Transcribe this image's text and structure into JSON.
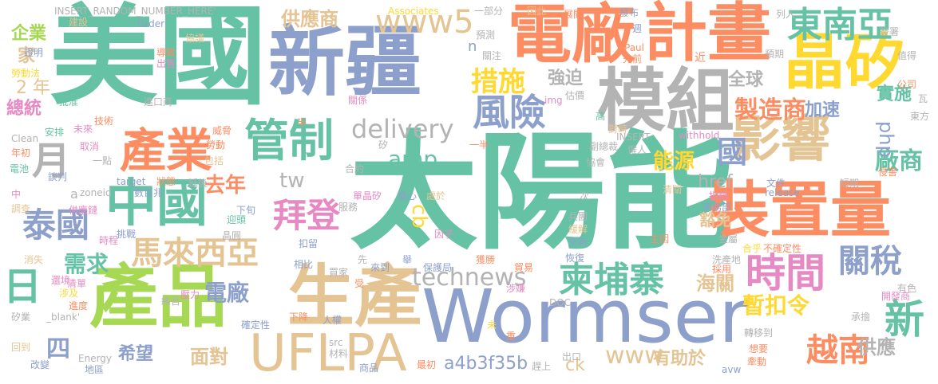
{
  "palette": {
    "teal": "#66c2a5",
    "orange": "#fc8d62",
    "blue": "#8da0cb",
    "pink": "#e78ac3",
    "green": "#a6d854",
    "yellow": "#ffd92f",
    "tan": "#e5c494",
    "gray": "#b3b3b3"
  },
  "words": {
    "taiyangneng": "太陽能",
    "meiguo": "美國",
    "xinjiang": "新疆",
    "wormser": "Wormser",
    "dianchang": "電廠",
    "jihua": "計畫",
    "mozu": "模組",
    "jingui": "晶矽",
    "zhuangzhiliang": "裝置量",
    "chanpin": "產品",
    "shengchan": "生產",
    "uflpa": "UFLPA",
    "zhongguo": "中國",
    "chanye": "產業",
    "guanzhi": "管制",
    "yingxiang": "影響",
    "dongnanya": "東南亞",
    "www5": "www5",
    "shijian": "時間",
    "jianpuzhai": "柬埔寨",
    "malaixiya": "馬來西亞",
    "baideng": "拜登",
    "fengxian": "風險",
    "cuoshi": "措施",
    "delivery": "delivery",
    "technews": "technews",
    "taiguo": "泰國",
    "yue": "月",
    "ri": "日",
    "guanshui": "關稅",
    "xin": "新",
    "yuenan": "越南",
    "amp": "amp",
    "xuqiu": "需求",
    "gongyingshang": "供應商",
    "zhizaoshang": "製造商",
    "guo": "國",
    "changshang": "廠商",
    "haiguan": "海關",
    "zankouling": "暫扣令",
    "cb": "cb",
    "www": "www",
    "php": "php",
    "qiangpo": "強迫",
    "quanqiu": "全球",
    "nengyuan": "能源",
    "jiasu": "加速",
    "shishi": "實施",
    "qunian": "去年",
    "tw": "tw",
    "qiye": "企業",
    "jia": "家",
    "ernian": "2 年",
    "zongtong": "總統",
    "xiwang": "希望",
    "miandui": "面對",
    "dianchang2": "電廠",
    "a4b3f35b": "a4b3f35b",
    "ck": "ck",
    "youzhuyu": "有助於",
    "gongying": "供應",
    "si": "四",
    "href": "href",
    "huomian": "豁免",
    "insert_random": "INSERT_RANDOM_NUMBER_HERE'",
    "associates": "Associates",
    "yibufen": "一部分",
    "yinci": "因此",
    "zhankai": "展開",
    "fabu": "發布",
    "jianshe": "建設",
    "order": "Order",
    "xieyi": "協議",
    "yuce": "預測",
    "zhou": "週",
    "zhengming": "證明",
    "daozhi": "導致",
    "chushou": "出售",
    "guanzhu": "關注",
    "paul": "Paul",
    "xianqian": "先前",
    "jin": "近",
    "yuqi": "預期",
    "zhide": "值得",
    "qianshu": "簽署",
    "lieru": "列入",
    "laodongfa": "勞動法",
    "guanxi": "關係",
    "gongsi": "公司",
    "wa": "瓦",
    "pizhun": "批准",
    "jinkoushang": "進口商",
    "img": "img",
    "gujia": "估價",
    "dongfang": "東方",
    "jishu": "技術",
    "clean": "Clean",
    "anpai": "安排",
    "weilai": "未來",
    "weixie": "威脅",
    "gao": "高",
    "duizhi": "對峙",
    "fuzongcai": "副總裁",
    "insert": "INSERT",
    "withhold": "withhold",
    "niandan": "年初",
    "quxiao": "取消",
    "laodong": "勞動",
    "xi": "矽",
    "yiban": "一半",
    "guren": "僱人",
    "qinhai": "侵害",
    "dianchi": "電池",
    "yidian": "一點",
    "baokuo": "包括",
    "zhuangkuang": "狀態",
    "heyue": "合約",
    "xiehui": "協會",
    "tanpan": "談判",
    "zhong": "中",
    "target": "target",
    "shuboli": "數百兆",
    "yanchang": "延後",
    "zoneid": "zoneid",
    "wenjian": "文件",
    "release": "release",
    "duanqi": "短期",
    "cheng": "次",
    "qingguan": "清關",
    "zhiye": "指稱",
    "diaocha": "調查",
    "gongyinglian": "供應鏈",
    "xiaxun": "下旬",
    "yingyuan": "迎頭",
    "fuwu": "服務",
    "chongxin": "重心",
    "chuyu": "處於",
    "shangwubu": "商務部",
    "jinghe": "晶圓",
    "danjinggui": "單晶矽",
    "bingtuan": "兵團",
    "huanjie": "緩解",
    "shicheng": "時程",
    "tiaozhan": "挑戰",
    "koulu": "扣留",
    "yinzi": "因子",
    "shijie": "世界",
    "quanxin": "全新",
    "zhuyin": "主因",
    "jinshu": "金屬",
    "xiaoshi": "消失",
    "xiangbi": "相比",
    "xian": "先",
    "lai": "來到",
    "ju": "舉",
    "baohuju": "保護局",
    "huode": "獲勝",
    "maoyi": "貿易",
    "huifu": "恢復",
    "heping": "合乎",
    "bquedingxing": "不確定性",
    "xichandi": "洗產地",
    "caiyong": "採用",
    "huanjing": "還境",
    "qingdan": "清單",
    "maijia": "買家",
    "shou": "受",
    "shejian": "涉嫌",
    "kaifashang": "開發商",
    "youse": "有色",
    "jiaodai": "繳代",
    "yali": "壓力",
    "sheji": "涉及",
    "jindu": "進度",
    "weiyu": "維吾",
    "doc": "DOC",
    "xiajiang": "下降",
    "renquan": "人權",
    "shiye": "矽業",
    "blank": "_blank'",
    "queding": "確定性",
    "wei": "未",
    "zhong2": "重",
    "zhuanyi": "轉移到",
    "chengdan": "承擔",
    "xiangyao": "想要",
    "huidao": "回到",
    "energy": "Energy",
    "src": "src",
    "cailiao": "材料",
    "zuichu": "最初",
    "chukou": "出口",
    "qiandong": "牽動",
    "gaibian": "改變",
    "diqu": "地區",
    "shangpin": "商品",
    "gongyingshang_s": "供應商",
    "avw": "avw",
    "shangxun": "趕上",
    "ban": "半",
    "n": "n",
    "a": "a"
  }
}
